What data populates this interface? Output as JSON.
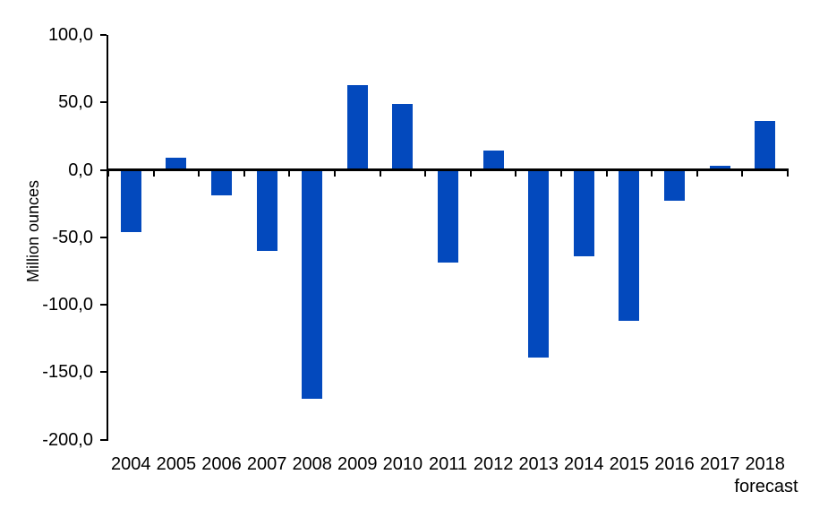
{
  "chart_data": {
    "type": "bar",
    "title": "",
    "ylabel": "Million ounces",
    "xlabel": "",
    "categories": [
      "2004",
      "2005",
      "2006",
      "2007",
      "2008",
      "2009",
      "2010",
      "2011",
      "2012",
      "2013",
      "2014",
      "2015",
      "2016",
      "2017",
      "2018"
    ],
    "values": [
      -46,
      9,
      -19,
      -60,
      -170,
      63,
      49,
      -69,
      14,
      -139,
      -64,
      -112,
      -23,
      3,
      36
    ],
    "last_category_note": "forecast",
    "ylim": [
      -200,
      100
    ],
    "y_ticks": [
      {
        "value": 100,
        "label": "100,0"
      },
      {
        "value": 50,
        "label": "50,0"
      },
      {
        "value": 0,
        "label": "0,0"
      },
      {
        "value": -50,
        "label": "-50,0"
      },
      {
        "value": -100,
        "label": "-100,0"
      },
      {
        "value": -150,
        "label": "-150,0"
      },
      {
        "value": -200,
        "label": "-200,0"
      }
    ],
    "bar_color": "#0349BD",
    "axis_color": "#000000",
    "text_color": "#000000",
    "grid": false,
    "legend_position": "none"
  }
}
